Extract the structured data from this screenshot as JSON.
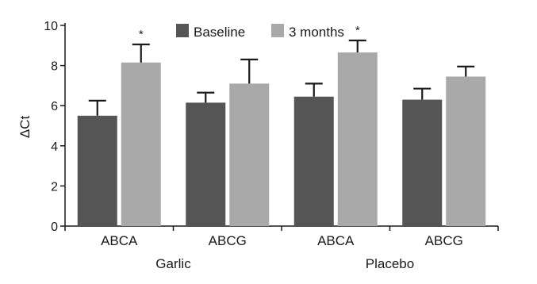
{
  "chart_data": {
    "type": "bar",
    "ylabel": "ΔCt",
    "xlabel": "",
    "ylim": [
      0,
      10
    ],
    "yticks": [
      "0",
      "2",
      "4",
      "6",
      "8",
      "10"
    ],
    "categories": [
      "ABCA",
      "ABCG",
      "ABCA",
      "ABCG"
    ],
    "groups": [
      "Garlic",
      "Placebo"
    ],
    "series": [
      {
        "name": "Baseline",
        "color": "#555555",
        "values": [
          5.5,
          6.15,
          6.45,
          6.3
        ],
        "errors": [
          0.75,
          0.5,
          0.65,
          0.55
        ]
      },
      {
        "name": "3 months",
        "color": "#a9a9a9",
        "values": [
          8.15,
          7.1,
          8.65,
          7.45
        ],
        "errors": [
          0.9,
          1.2,
          0.6,
          0.5
        ]
      }
    ],
    "annotations": [
      "*",
      "",
      "*",
      ""
    ],
    "legend": "top-center",
    "grid": false
  }
}
